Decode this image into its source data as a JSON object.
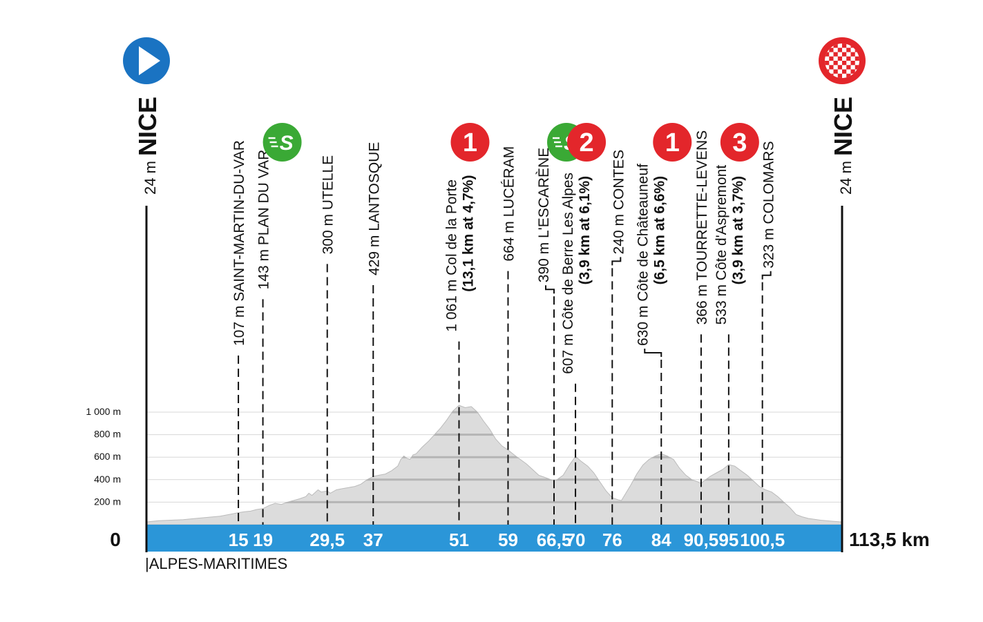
{
  "chart_data": {
    "type": "area",
    "x_unit": "km",
    "y_unit": "m",
    "ylim": [
      0,
      1000
    ],
    "y_ticks": [
      {
        "value": 200,
        "label": "200 m"
      },
      {
        "value": 400,
        "label": "400 m"
      },
      {
        "value": 600,
        "label": "600 m"
      },
      {
        "value": 800,
        "label": "800 m"
      },
      {
        "value": 1000,
        "label": "1 000 m"
      }
    ],
    "x_start_label": "0",
    "x_end_label": "113,5 km",
    "xlim": [
      0,
      113.5
    ],
    "region": "|ALPES-MARITIMES",
    "start": {
      "name": "NICE",
      "altitude": "24 m"
    },
    "finish": {
      "name": "NICE",
      "altitude": "24 m"
    },
    "profile": [
      [
        0,
        24
      ],
      [
        2,
        35
      ],
      [
        4,
        40
      ],
      [
        6,
        45
      ],
      [
        8,
        55
      ],
      [
        10,
        65
      ],
      [
        12,
        75
      ],
      [
        13.5,
        90
      ],
      [
        15,
        107
      ],
      [
        16,
        115
      ],
      [
        17,
        120
      ],
      [
        18,
        135
      ],
      [
        19,
        143
      ],
      [
        20,
        170
      ],
      [
        21,
        190
      ],
      [
        22,
        180
      ],
      [
        23,
        200
      ],
      [
        24,
        215
      ],
      [
        25,
        230
      ],
      [
        26,
        250
      ],
      [
        26.5,
        280
      ],
      [
        27,
        260
      ],
      [
        28,
        310
      ],
      [
        28.5,
        290
      ],
      [
        29.5,
        300
      ],
      [
        30,
        280
      ],
      [
        31,
        310
      ],
      [
        32,
        320
      ],
      [
        33,
        330
      ],
      [
        34,
        340
      ],
      [
        35,
        360
      ],
      [
        36,
        400
      ],
      [
        37,
        429
      ],
      [
        38,
        440
      ],
      [
        39,
        450
      ],
      [
        40,
        480
      ],
      [
        41,
        520
      ],
      [
        41.5,
        580
      ],
      [
        42,
        610
      ],
      [
        42.5,
        590
      ],
      [
        43,
        580
      ],
      [
        43.5,
        620
      ],
      [
        44,
        630
      ],
      [
        45,
        690
      ],
      [
        46,
        740
      ],
      [
        47,
        800
      ],
      [
        48,
        860
      ],
      [
        49,
        930
      ],
      [
        50,
        1010
      ],
      [
        51,
        1061
      ],
      [
        52,
        1040
      ],
      [
        53,
        1050
      ],
      [
        54,
        1000
      ],
      [
        55,
        920
      ],
      [
        56,
        850
      ],
      [
        57,
        760
      ],
      [
        58,
        700
      ],
      [
        59,
        664
      ],
      [
        60,
        620
      ],
      [
        61,
        580
      ],
      [
        62,
        540
      ],
      [
        63,
        490
      ],
      [
        64,
        440
      ],
      [
        65,
        420
      ],
      [
        66,
        400
      ],
      [
        66.5,
        390
      ],
      [
        67,
        400
      ],
      [
        68,
        440
      ],
      [
        69,
        530
      ],
      [
        70,
        607
      ],
      [
        71,
        560
      ],
      [
        72,
        520
      ],
      [
        73,
        460
      ],
      [
        74,
        380
      ],
      [
        75,
        300
      ],
      [
        76,
        240
      ],
      [
        77,
        220
      ],
      [
        77.5,
        215
      ],
      [
        78,
        260
      ],
      [
        79,
        350
      ],
      [
        80,
        450
      ],
      [
        81,
        530
      ],
      [
        82,
        580
      ],
      [
        83,
        610
      ],
      [
        84,
        630
      ],
      [
        85,
        610
      ],
      [
        86,
        580
      ],
      [
        87,
        500
      ],
      [
        88,
        440
      ],
      [
        89,
        400
      ],
      [
        90,
        380
      ],
      [
        90.5,
        366
      ],
      [
        91,
        390
      ],
      [
        92,
        430
      ],
      [
        93,
        460
      ],
      [
        94,
        490
      ],
      [
        95,
        533
      ],
      [
        96,
        520
      ],
      [
        97,
        480
      ],
      [
        98,
        440
      ],
      [
        99,
        390
      ],
      [
        100,
        340
      ],
      [
        100.5,
        323
      ],
      [
        101,
        310
      ],
      [
        102,
        290
      ],
      [
        103,
        250
      ],
      [
        104,
        200
      ],
      [
        105,
        150
      ],
      [
        106,
        90
      ],
      [
        107,
        70
      ],
      [
        108,
        55
      ],
      [
        110,
        40
      ],
      [
        112,
        30
      ],
      [
        113.5,
        24
      ]
    ],
    "points": [
      {
        "km": 15,
        "km_label": "15",
        "altitude": "107 m",
        "name": "SAINT-MARTIN-DU-VAR",
        "detail": "",
        "marker": "",
        "offset": "none"
      },
      {
        "km": 19,
        "km_label": "19",
        "altitude": "143 m",
        "name": "PLAN DU VAR",
        "detail": "",
        "marker": "sprint",
        "offset": "none"
      },
      {
        "km": 29.5,
        "km_label": "29,5",
        "altitude": "300 m",
        "name": "UTELLE",
        "detail": "",
        "marker": "",
        "offset": "none"
      },
      {
        "km": 37,
        "km_label": "37",
        "altitude": "429 m",
        "name": "LANTOSQUE",
        "detail": "",
        "marker": "",
        "offset": "none"
      },
      {
        "km": 51,
        "km_label": "51",
        "altitude": "1 061 m",
        "name": "Col de la Porte",
        "detail": "(13,1 km at 4,7%)",
        "marker": "1",
        "offset": "none"
      },
      {
        "km": 59,
        "km_label": "59",
        "altitude": "664 m",
        "name": "LUCÉRAM",
        "detail": "",
        "marker": "",
        "offset": "none"
      },
      {
        "km": 66.5,
        "km_label": "66,5",
        "altitude": "390 m",
        "name": "L'ESCARÈNE",
        "detail": "",
        "marker": "sprint",
        "offset": "left"
      },
      {
        "km": 70,
        "km_label": "70",
        "altitude": "607 m",
        "name": "Côte de Berre Les Alpes",
        "detail": "(3,9 km at 6,1%)",
        "marker": "2",
        "offset": "none"
      },
      {
        "km": 76,
        "km_label": "76",
        "altitude": "240 m",
        "name": "CONTES",
        "detail": "",
        "marker": "",
        "offset": "right"
      },
      {
        "km": 84,
        "km_label": "84",
        "altitude": "630 m",
        "name": "Côte de Châteauneuf",
        "detail": "(6,5 km at 6,6%)",
        "marker": "1",
        "offset": "left"
      },
      {
        "km": 90.5,
        "km_label": "90,5",
        "altitude": "366 m",
        "name": "TOURRETTE-LEVENS",
        "detail": "",
        "marker": "",
        "offset": "none"
      },
      {
        "km": 95,
        "km_label": "95",
        "altitude": "533 m",
        "name": "Côte d'Aspremont",
        "detail": "(3,9 km at 3,7%)",
        "marker": "3",
        "offset": "none"
      },
      {
        "km": 100.5,
        "km_label": "100,5",
        "altitude": "323 m",
        "name": "COLOMARS",
        "detail": "",
        "marker": "",
        "offset": "right"
      }
    ],
    "colors": {
      "profile_fill": "#dcdcdc",
      "baseline_band": "#2b96d8",
      "start_badge": "#1a73c2",
      "finish_badge": "#e3262b",
      "sprint_badge": "#3aa935",
      "climb_badge": "#e3262b",
      "grid": "#d7d7d7"
    },
    "sprint_icon_text": "S"
  }
}
